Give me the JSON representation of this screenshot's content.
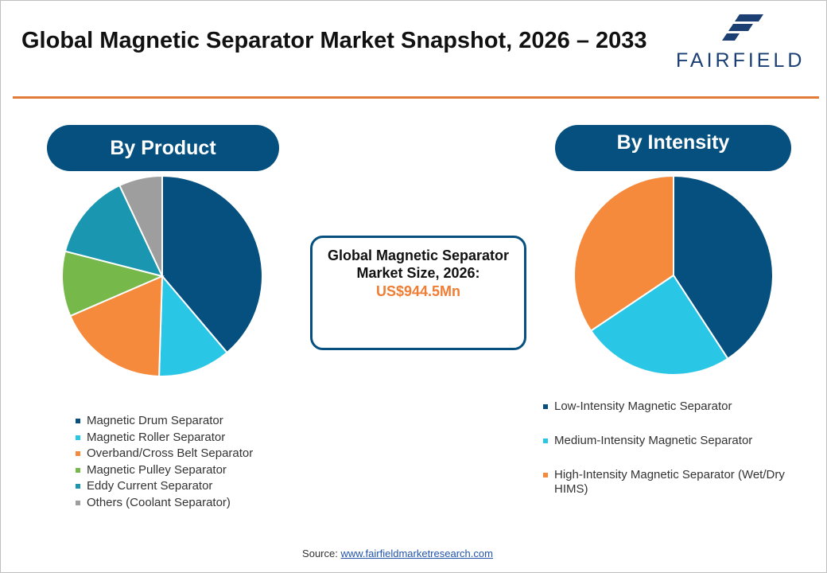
{
  "header": {
    "title": "Global Magnetic Separator Market Snapshot, 2026 – 2033",
    "logo_text": "FAIRFIELD"
  },
  "center_box": {
    "label": "Global Magnetic Separator Market Size, 2026:",
    "value": "US$944.5Mn"
  },
  "footer": {
    "source_label": "Source:",
    "source_link": "www.fairfieldmarketresearch.com"
  },
  "colors": {
    "accent_rule": "#e07b39",
    "pill_bg": "#05507f",
    "value_orange": "#ef7d33"
  },
  "chart_data": [
    {
      "type": "pie",
      "title": "By Product",
      "categories": [
        "Magnetic Drum Separator",
        "Magnetic Roller Separator",
        "Overband/Cross Belt Separator",
        "Magnetic Pulley Separator",
        "Eddy Current Separator",
        "Others (Coolant Separator)"
      ],
      "values": [
        38.8,
        11.7,
        18.0,
        10.5,
        14.0,
        7.0
      ],
      "colors": [
        "#05507f",
        "#29c6e6",
        "#f58a3c",
        "#77b84b",
        "#1b96b0",
        "#9e9e9e"
      ],
      "legend_position": "bottom"
    },
    {
      "type": "pie",
      "title": "By Intensity",
      "categories": [
        "Low-Intensity Magnetic Separator",
        "Medium-Intensity Magnetic Separator",
        "High-Intensity Magnetic Separator (Wet/Dry HIMS)"
      ],
      "values": [
        40.8,
        24.8,
        34.4
      ],
      "colors": [
        "#05507f",
        "#29c6e6",
        "#f58a3c"
      ],
      "legend_position": "bottom"
    }
  ]
}
